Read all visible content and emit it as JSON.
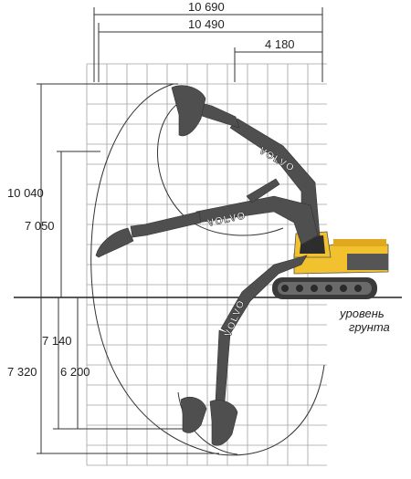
{
  "dimensions": {
    "top": [
      "10 690",
      "10 490",
      "4 180"
    ],
    "left": [
      "10 040",
      "7 050",
      "7 140",
      "6 200",
      "7 320"
    ]
  },
  "ground_label": [
    "уровень",
    "грунта"
  ],
  "brand": "VOLVO",
  "colors": {
    "machine_yellow": "#f2c12e",
    "boom_gray": "#4f4f4f",
    "grid": "#999999",
    "lines": "#333333"
  }
}
